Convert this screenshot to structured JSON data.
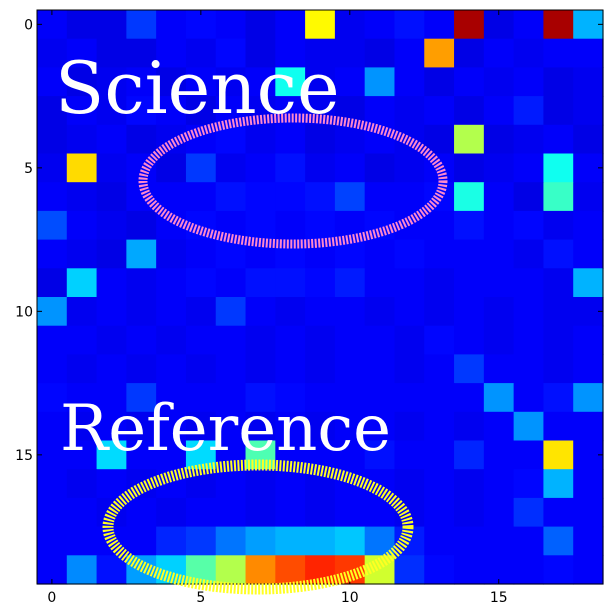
{
  "chart_data": {
    "type": "heatmap",
    "title": "",
    "xlabel": "",
    "ylabel": "",
    "colormap": "jet",
    "vmin": 0,
    "vmax": 1,
    "x_ticks": [
      0,
      5,
      10,
      15
    ],
    "y_ticks": [
      0,
      5,
      10,
      15
    ],
    "x_tick_labels": [
      "0",
      "5",
      "10",
      "15"
    ],
    "y_tick_labels": [
      "0",
      "5",
      "10",
      "15"
    ],
    "n_rows": 20,
    "n_cols": 19,
    "values": [
      [
        0.12,
        0.1,
        0.1,
        0.18,
        0.12,
        0.13,
        0.12,
        0.1,
        0.12,
        0.63,
        0.11,
        0.12,
        0.14,
        0.12,
        0.96,
        0.1,
        0.12,
        0.96,
        0.3
      ],
      [
        0.11,
        0.12,
        0.1,
        0.1,
        0.12,
        0.11,
        0.13,
        0.1,
        0.12,
        0.11,
        0.11,
        0.1,
        0.12,
        0.72,
        0.1,
        0.12,
        0.11,
        0.12,
        0.12
      ],
      [
        0.12,
        0.1,
        0.11,
        0.12,
        0.1,
        0.12,
        0.11,
        0.12,
        0.39,
        0.11,
        0.12,
        0.27,
        0.12,
        0.1,
        0.12,
        0.11,
        0.12,
        0.1,
        0.11
      ],
      [
        0.1,
        0.12,
        0.11,
        0.13,
        0.12,
        0.1,
        0.12,
        0.11,
        0.12,
        0.11,
        0.1,
        0.12,
        0.11,
        0.12,
        0.1,
        0.12,
        0.15,
        0.1,
        0.11
      ],
      [
        0.1,
        0.11,
        0.12,
        0.1,
        0.11,
        0.12,
        0.13,
        0.11,
        0.12,
        0.1,
        0.11,
        0.12,
        0.11,
        0.1,
        0.55,
        0.1,
        0.11,
        0.12,
        0.1
      ],
      [
        0.11,
        0.66,
        0.11,
        0.12,
        0.1,
        0.18,
        0.11,
        0.12,
        0.14,
        0.11,
        0.12,
        0.1,
        0.11,
        0.12,
        0.1,
        0.11,
        0.12,
        0.39,
        0.12
      ],
      [
        0.12,
        0.11,
        0.1,
        0.12,
        0.12,
        0.12,
        0.14,
        0.13,
        0.13,
        0.14,
        0.19,
        0.12,
        0.12,
        0.13,
        0.4,
        0.12,
        0.1,
        0.43,
        0.11
      ],
      [
        0.2,
        0.12,
        0.11,
        0.1,
        0.12,
        0.13,
        0.12,
        0.13,
        0.12,
        0.13,
        0.12,
        0.13,
        0.12,
        0.12,
        0.14,
        0.12,
        0.13,
        0.11,
        0.12
      ],
      [
        0.12,
        0.11,
        0.1,
        0.29,
        0.11,
        0.12,
        0.13,
        0.12,
        0.13,
        0.12,
        0.13,
        0.12,
        0.13,
        0.12,
        0.12,
        0.12,
        0.11,
        0.14,
        0.12
      ],
      [
        0.1,
        0.33,
        0.12,
        0.11,
        0.12,
        0.13,
        0.12,
        0.14,
        0.14,
        0.13,
        0.15,
        0.12,
        0.12,
        0.11,
        0.12,
        0.12,
        0.12,
        0.11,
        0.3
      ],
      [
        0.27,
        0.11,
        0.12,
        0.11,
        0.12,
        0.11,
        0.18,
        0.12,
        0.11,
        0.12,
        0.12,
        0.11,
        0.12,
        0.11,
        0.12,
        0.11,
        0.12,
        0.11,
        0.11
      ],
      [
        0.12,
        0.12,
        0.11,
        0.12,
        0.11,
        0.12,
        0.12,
        0.11,
        0.12,
        0.11,
        0.12,
        0.12,
        0.11,
        0.13,
        0.12,
        0.11,
        0.12,
        0.11,
        0.12
      ],
      [
        0.12,
        0.11,
        0.12,
        0.11,
        0.12,
        0.11,
        0.12,
        0.11,
        0.12,
        0.11,
        0.12,
        0.12,
        0.11,
        0.12,
        0.18,
        0.12,
        0.12,
        0.11,
        0.12
      ],
      [
        0.13,
        0.12,
        0.12,
        0.18,
        0.12,
        0.12,
        0.12,
        0.14,
        0.13,
        0.12,
        0.12,
        0.12,
        0.12,
        0.12,
        0.12,
        0.27,
        0.12,
        0.14,
        0.27
      ],
      [
        0.12,
        0.11,
        0.12,
        0.11,
        0.12,
        0.11,
        0.12,
        0.11,
        0.12,
        0.11,
        0.12,
        0.12,
        0.11,
        0.12,
        0.11,
        0.12,
        0.27,
        0.12,
        0.12
      ],
      [
        0.12,
        0.12,
        0.34,
        0.12,
        0.12,
        0.34,
        0.12,
        0.45,
        0.12,
        0.12,
        0.12,
        0.14,
        0.12,
        0.12,
        0.16,
        0.12,
        0.12,
        0.65,
        0.12
      ],
      [
        0.12,
        0.11,
        0.12,
        0.11,
        0.12,
        0.11,
        0.12,
        0.11,
        0.12,
        0.11,
        0.12,
        0.12,
        0.11,
        0.12,
        0.11,
        0.12,
        0.13,
        0.3,
        0.12
      ],
      [
        0.12,
        0.12,
        0.11,
        0.12,
        0.11,
        0.12,
        0.12,
        0.11,
        0.12,
        0.11,
        0.12,
        0.12,
        0.11,
        0.12,
        0.11,
        0.12,
        0.17,
        0.12,
        0.12
      ],
      [
        0.12,
        0.12,
        0.12,
        0.12,
        0.16,
        0.18,
        0.24,
        0.28,
        0.3,
        0.3,
        0.32,
        0.24,
        0.15,
        0.12,
        0.12,
        0.12,
        0.12,
        0.22,
        0.12
      ],
      [
        0.12,
        0.26,
        0.14,
        0.28,
        0.33,
        0.46,
        0.55,
        0.74,
        0.8,
        0.84,
        0.82,
        0.58,
        0.17,
        0.13,
        0.12,
        0.12,
        0.12,
        0.13,
        0.12
      ]
    ],
    "annotations": [
      {
        "text": "Science"
      },
      {
        "text": "Reference"
      }
    ],
    "marker_colors": {
      "science_ring": "#ff88cc",
      "reference_ring": "#ffff22"
    }
  }
}
